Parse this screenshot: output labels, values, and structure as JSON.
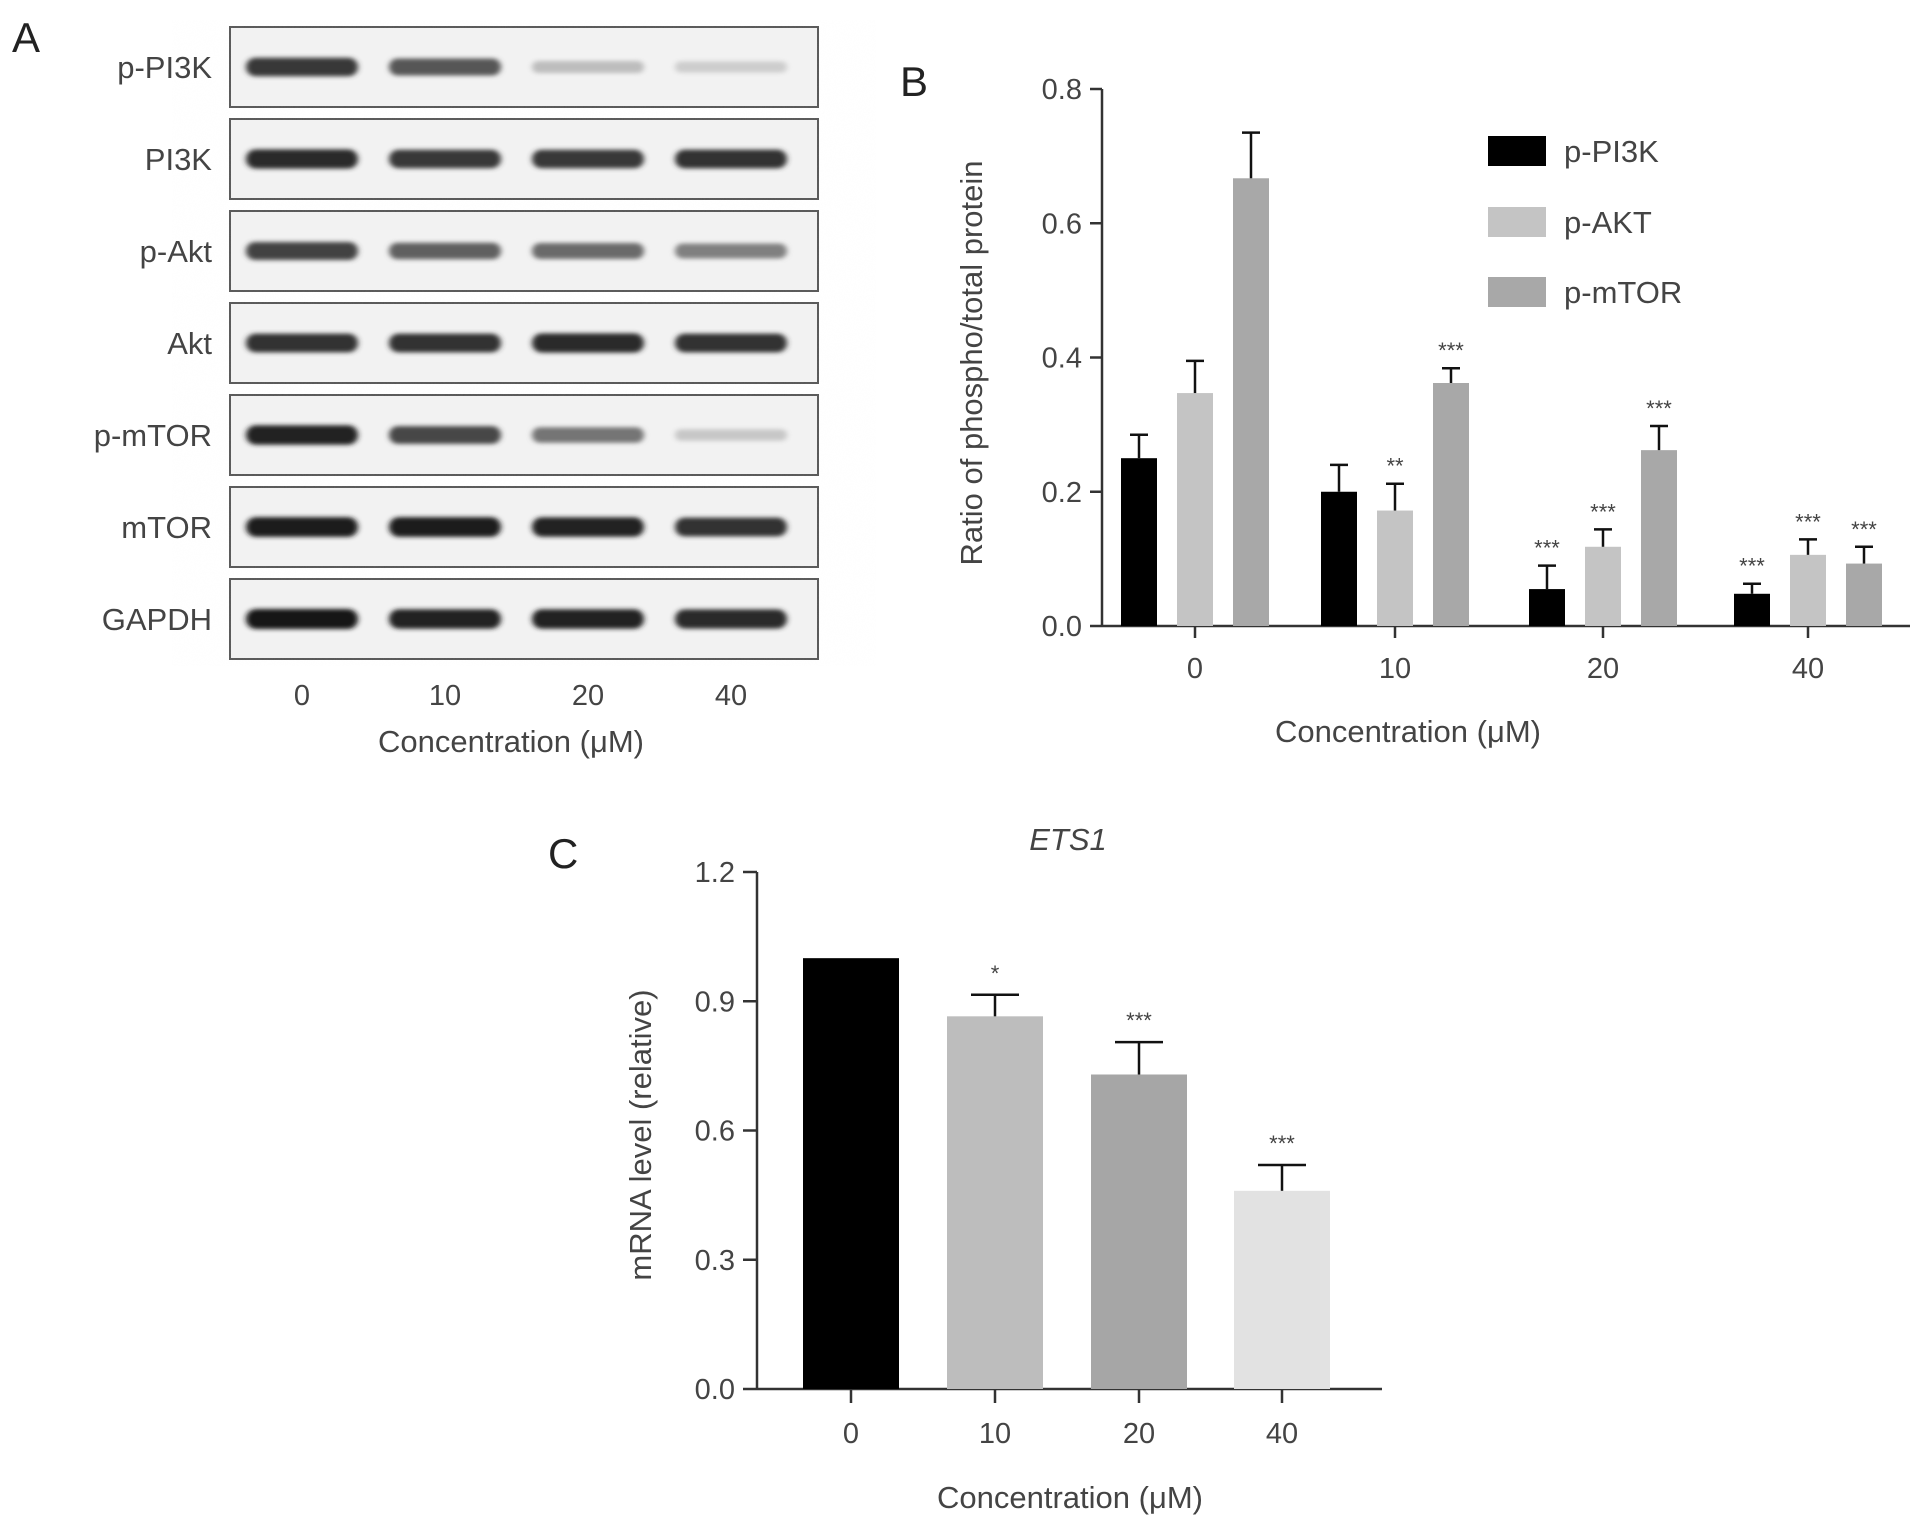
{
  "panels": {
    "a": "A",
    "b": "B",
    "c": "C"
  },
  "blot": {
    "rows": [
      "p-PI3K",
      "PI3K",
      "p-Akt",
      "Akt",
      "p-mTOR",
      "mTOR",
      "GAPDH"
    ],
    "lanes": [
      "0",
      "10",
      "20",
      "40"
    ],
    "xlabel": "Concentration (μM)",
    "band_intensity": [
      [
        0.85,
        0.7,
        0.2,
        0.12
      ],
      [
        0.92,
        0.85,
        0.85,
        0.88
      ],
      [
        0.8,
        0.65,
        0.6,
        0.5
      ],
      [
        0.88,
        0.88,
        0.92,
        0.88
      ],
      [
        0.95,
        0.78,
        0.55,
        0.15
      ],
      [
        0.98,
        0.98,
        0.95,
        0.88
      ],
      [
        1.0,
        0.95,
        0.95,
        0.92
      ]
    ]
  },
  "chart_data": [
    {
      "type": "bar",
      "panel": "B",
      "categories": [
        "0",
        "10",
        "20",
        "40"
      ],
      "xlabel": "Concentration (μM)",
      "ylabel": "Ratio of phospho/total protein",
      "ylim": [
        0,
        0.8
      ],
      "yticks": [
        "0.0",
        "0.2",
        "0.4",
        "0.6",
        "0.8"
      ],
      "legend_position": "top-right",
      "series": [
        {
          "name": "p-PI3K",
          "color": "#000000",
          "values": [
            0.25,
            0.2,
            0.055,
            0.048
          ],
          "errors": [
            0.035,
            0.04,
            0.035,
            0.015
          ],
          "sig": [
            "",
            "",
            "***",
            "***"
          ]
        },
        {
          "name": "p-AKT",
          "color": "#c4c4c4",
          "values": [
            0.347,
            0.172,
            0.118,
            0.106
          ],
          "errors": [
            0.048,
            0.04,
            0.026,
            0.023
          ],
          "sig": [
            "",
            "**",
            "***",
            "***"
          ]
        },
        {
          "name": "p-mTOR",
          "color": "#a8a8a8",
          "values": [
            0.667,
            0.362,
            0.262,
            0.093
          ],
          "errors": [
            0.068,
            0.022,
            0.036,
            0.025
          ],
          "sig": [
            "",
            "***",
            "***",
            "***"
          ]
        }
      ]
    },
    {
      "type": "bar",
      "panel": "C",
      "title": "ETS1",
      "categories": [
        "0",
        "10",
        "20",
        "40"
      ],
      "xlabel": "Concentration (μM)",
      "ylabel": "mRNA level (relative)",
      "ylim": [
        0,
        1.2
      ],
      "yticks": [
        "0.0",
        "0.3",
        "0.6",
        "0.9",
        "1.2"
      ],
      "values": [
        1.0,
        0.865,
        0.73,
        0.46
      ],
      "errors": [
        0,
        0.05,
        0.075,
        0.06
      ],
      "colors": [
        "#000000",
        "#bdbdbd",
        "#a6a6a6",
        "#e2e2e2"
      ],
      "sig": [
        "",
        "*",
        "***",
        "***"
      ]
    }
  ]
}
